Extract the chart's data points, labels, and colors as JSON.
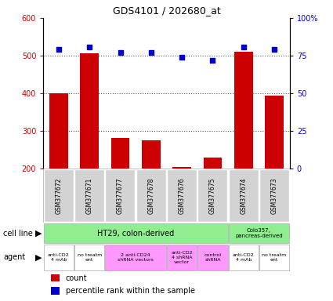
{
  "title": "GDS4101 / 202680_at",
  "samples": [
    "GSM377672",
    "GSM377671",
    "GSM377677",
    "GSM377678",
    "GSM377676",
    "GSM377675",
    "GSM377674",
    "GSM377673"
  ],
  "counts": [
    400,
    507,
    282,
    276,
    205,
    229,
    511,
    393
  ],
  "percentiles": [
    79,
    81,
    77,
    77,
    74,
    72,
    81,
    79
  ],
  "ylim_left": [
    200,
    600
  ],
  "ylim_right": [
    0,
    100
  ],
  "yticks_left": [
    200,
    300,
    400,
    500,
    600
  ],
  "yticks_right": [
    0,
    25,
    50,
    75,
    100
  ],
  "ytick_labels_right": [
    "0",
    "25",
    "50",
    "75",
    "100%"
  ],
  "bar_color": "#cc0000",
  "dot_color": "#0000cc",
  "cell_line_ht29": "#90ee90",
  "cell_line_labels": [
    "HT29, colon-derived",
    "Colo357,\npancreas-derived"
  ],
  "agent_groups": [
    {
      "label": "anti-CD2\n4 mAb",
      "color": "#ffffff",
      "span": 1
    },
    {
      "label": "no treatm\nent",
      "color": "#ffffff",
      "span": 1
    },
    {
      "label": "2 anti-CD24\nshRNA vectors",
      "color": "#ff99ff",
      "span": 2
    },
    {
      "label": "anti-CD2\n4 shRNA\nvector",
      "color": "#ff99ff",
      "span": 1
    },
    {
      "label": "control\nshRNA",
      "color": "#ff99ff",
      "span": 1
    },
    {
      "label": "anti-CD2\n4 mAb",
      "color": "#ffffff",
      "span": 1
    },
    {
      "label": "no treatm\nent",
      "color": "#ffffff",
      "span": 1
    }
  ],
  "sample_bg_color": "#d3d3d3",
  "axis_left_color": "#cc0000",
  "axis_right_color": "#0000cc",
  "dotted_line_color": "#555555"
}
